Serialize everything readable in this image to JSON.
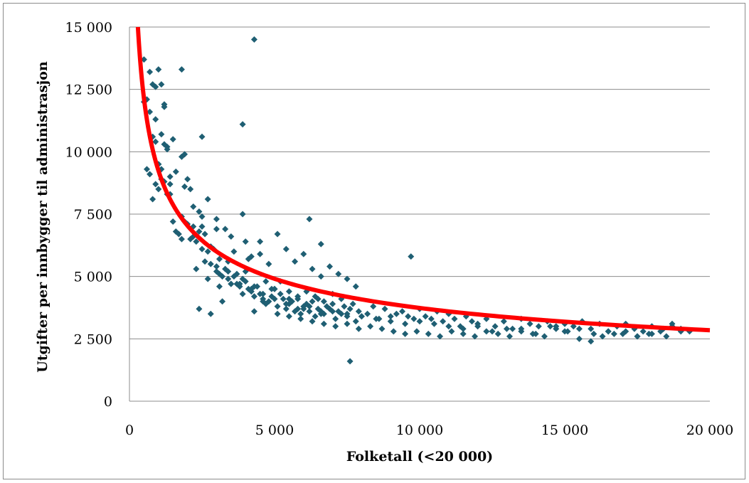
{
  "chart_data": {
    "type": "scatter",
    "title": "",
    "xlabel": "Folketall (<20 000)",
    "ylabel": "Utgifter per innbygger til administrasjon",
    "xlim": [
      0,
      20000
    ],
    "ylim": [
      0,
      15000
    ],
    "x_ticks": [
      0,
      5000,
      10000,
      15000,
      20000
    ],
    "x_tick_labels": [
      "0",
      "5 000",
      "10 000",
      "15 000",
      "20 000"
    ],
    "y_ticks": [
      0,
      2500,
      5000,
      7500,
      10000,
      12500,
      15000
    ],
    "y_tick_labels": [
      "0",
      "2 500",
      "5 000",
      "7 500",
      "10 000",
      "12 500",
      "15 000"
    ],
    "grid": "horizontal",
    "legend": "none",
    "colors": {
      "points": "#1f5f73",
      "trend": "#ff0000",
      "grid": "#8c8c8c",
      "border": "#8c8c8c"
    },
    "trendline": {
      "type": "power",
      "x": [
        300,
        500,
        800,
        1000,
        1500,
        2000,
        3000,
        4000,
        5000,
        7500,
        10000,
        15000,
        20000
      ],
      "y": [
        15000,
        12500,
        10000,
        9200,
        7800,
        6900,
        5900,
        5300,
        4850,
        4200,
        3800,
        3250,
        2850
      ]
    },
    "series": [
      {
        "x": [
          500,
          600,
          700,
          800,
          900,
          1000,
          1100,
          1200,
          500,
          700,
          800,
          900,
          1000,
          1100,
          1200,
          1300,
          1400,
          600,
          700,
          800,
          900,
          1000,
          1100,
          1200,
          1300,
          1400,
          1500,
          1600,
          1700,
          1800,
          1900,
          2000,
          2100,
          2200,
          2300,
          2400,
          2500,
          2600,
          2700,
          2800,
          2900,
          3000,
          3100,
          3200,
          3300,
          3400,
          3500,
          3600,
          3700,
          3800,
          3900,
          4000,
          4100,
          4200,
          4300,
          4400,
          4500,
          4600,
          4700,
          4800,
          4900,
          5000,
          5100,
          5200,
          5300,
          5400,
          5500,
          5600,
          5700,
          5800,
          5900,
          6000,
          6100,
          6200,
          6300,
          6400,
          6500,
          6600,
          6700,
          6800,
          6900,
          7000,
          7100,
          7200,
          7300,
          7400,
          7500,
          7600,
          7700,
          7800,
          7900,
          8000,
          8200,
          8400,
          8600,
          8800,
          9000,
          9200,
          9400,
          9600,
          9800,
          10000,
          10200,
          10400,
          10600,
          10800,
          11000,
          11200,
          11400,
          11600,
          11800,
          12000,
          12300,
          12600,
          12900,
          13200,
          13500,
          13800,
          14100,
          14400,
          14700,
          15000,
          15300,
          15600,
          15900,
          16200,
          16500,
          16800,
          17100,
          17400,
          17700,
          18000,
          18400,
          18700,
          19000,
          19300,
          900,
          1200,
          1500,
          1800,
          2100,
          2400,
          2700,
          3000,
          3300,
          3600,
          3900,
          4200,
          4500,
          4800,
          5100,
          5400,
          5700,
          6000,
          6300,
          6600,
          6900,
          7200,
          7500,
          7800,
          1300,
          1600,
          1900,
          2200,
          2500,
          2800,
          3100,
          3400,
          3700,
          4000,
          4300,
          4600,
          4900,
          5200,
          5500,
          5800,
          6100,
          6400,
          6700,
          7000,
          7300,
          1000,
          1400,
          1800,
          2200,
          2600,
          3000,
          3400,
          3800,
          4200,
          4600,
          5000,
          5400,
          5800,
          6200,
          6600,
          2000,
          2500,
          3000,
          3500,
          4000,
          4500,
          5000,
          5500,
          6000,
          6500,
          7000,
          7500,
          8000,
          8500,
          9000,
          9500,
          10000,
          10500,
          11000,
          11500,
          12000,
          12500,
          13000,
          13500,
          14000,
          14500,
          15000,
          15500,
          16000,
          16500,
          17000,
          17500,
          18000,
          18500,
          19000,
          2300,
          2700,
          3100,
          3500,
          3900,
          4300,
          4700,
          5100,
          5500,
          5900,
          6300,
          6700,
          7100,
          7500,
          7900,
          8300,
          8700,
          9100,
          9500,
          9900,
          10300,
          10700,
          11100,
          11500,
          11900,
          12300,
          12700,
          13100,
          13500,
          13900,
          14300,
          14700,
          15100,
          15500,
          15900,
          16300,
          16700,
          17100,
          17500,
          17900,
          18300,
          18700,
          4300,
          1800,
          3900,
          1100,
          2500,
          1900,
          9700,
          6200,
          7600,
          2400,
          3200,
          2800,
          4100,
          6600
        ],
        "y": [
          13700,
          12100,
          13200,
          12700,
          12600,
          13300,
          12700,
          11900,
          12000,
          11600,
          10600,
          10400,
          9500,
          9300,
          10300,
          10200,
          9000,
          9300,
          9100,
          8100,
          8700,
          9500,
          8900,
          8800,
          8300,
          8700,
          7200,
          6800,
          6700,
          6500,
          7200,
          7100,
          6500,
          7000,
          6400,
          6800,
          6100,
          5600,
          6000,
          5500,
          6100,
          5400,
          5100,
          5000,
          5300,
          5600,
          4700,
          5000,
          5100,
          4600,
          4900,
          4800,
          4500,
          4400,
          4200,
          4600,
          4300,
          4100,
          4800,
          4000,
          4200,
          4500,
          3800,
          4300,
          4100,
          3700,
          3900,
          4000,
          3600,
          4200,
          3500,
          3700,
          3900,
          3800,
          4000,
          3400,
          4100,
          3600,
          3500,
          3800,
          3700,
          3900,
          3300,
          3600,
          3500,
          3800,
          3400,
          3700,
          3900,
          3200,
          3600,
          3400,
          3500,
          3800,
          3300,
          3700,
          3400,
          3500,
          3600,
          3400,
          3300,
          3700,
          3400,
          3300,
          3600,
          3200,
          3500,
          3300,
          3000,
          3400,
          3200,
          3100,
          3300,
          3000,
          3200,
          2900,
          3300,
          3100,
          3000,
          3200,
          2900,
          3100,
          3000,
          3200,
          2900,
          3100,
          2800,
          3000,
          3100,
          2900,
          2800,
          3000,
          2900,
          3100,
          2900,
          2800,
          11300,
          11800,
          10500,
          9800,
          8500,
          7600,
          8100,
          7300,
          6900,
          6000,
          7500,
          5800,
          6400,
          5500,
          6700,
          6100,
          5600,
          5900,
          5300,
          5000,
          5400,
          5100,
          4900,
          4600,
          10100,
          9200,
          8600,
          7800,
          7000,
          6200,
          5700,
          5200,
          4700,
          5200,
          4600,
          4300,
          4500,
          4800,
          4400,
          4100,
          4400,
          4200,
          4000,
          4300,
          4100,
          8500,
          8300,
          7400,
          6600,
          6700,
          5200,
          4900,
          4700,
          4500,
          4000,
          4100,
          3900,
          3700,
          3600,
          3500,
          8900,
          7400,
          6900,
          6600,
          6400,
          5900,
          4500,
          4100,
          3800,
          3700,
          3600,
          3500,
          3400,
          3300,
          3200,
          3100,
          3200,
          3100,
          3000,
          2900,
          3000,
          2800,
          2900,
          2800,
          2700,
          3000,
          2800,
          2900,
          2700,
          2800,
          2700,
          2600,
          2700,
          2600,
          2800,
          5300,
          4900,
          4600,
          4700,
          4300,
          3600,
          3900,
          3500,
          3400,
          3300,
          3200,
          3100,
          3000,
          3100,
          2900,
          3000,
          2900,
          2800,
          2700,
          2800,
          2700,
          2600,
          2800,
          2700,
          2600,
          2800,
          2700,
          2600,
          2900,
          2700,
          2600,
          3000,
          2800,
          2500,
          2400,
          2600,
          2700,
          2800,
          2600,
          2700,
          2800,
          3000,
          14500,
          13300,
          11100,
          10700,
          10600,
          9900,
          5800,
          7300,
          1600,
          3700,
          4000,
          3500,
          5700,
          6300
        ]
      }
    ]
  }
}
